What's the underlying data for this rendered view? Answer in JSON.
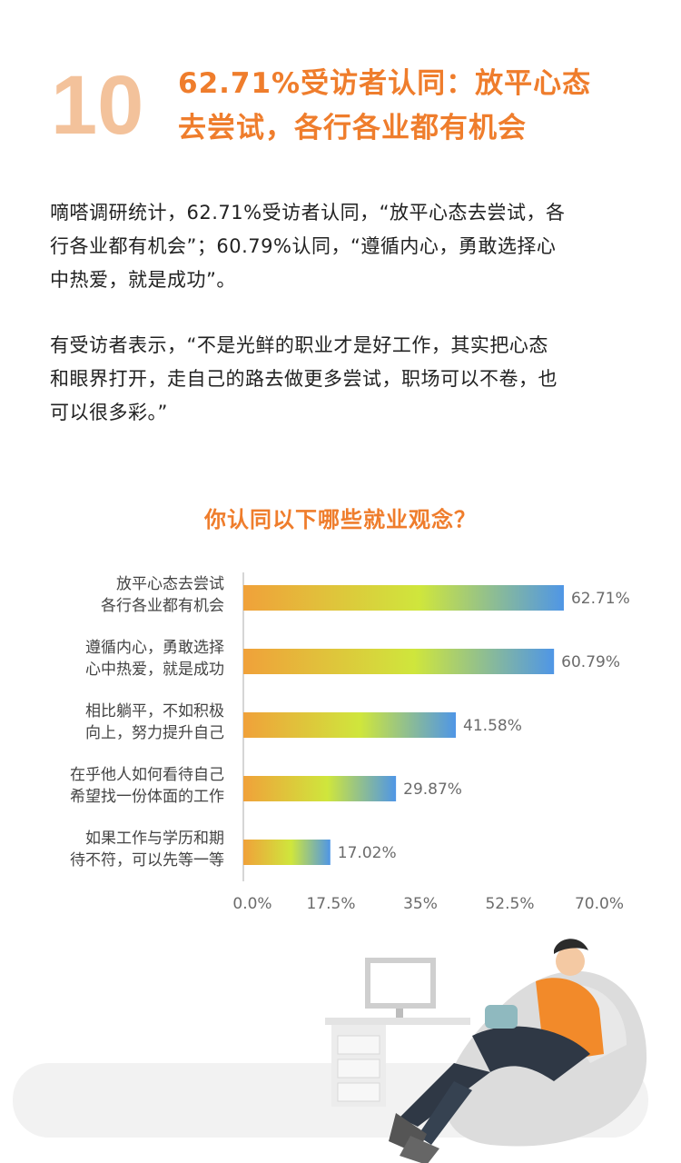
{
  "header": {
    "number": "10",
    "title_line1": "62.71%受访者认同：放平心态",
    "title_line2": "去尝试，各行各业都有机会"
  },
  "paragraphs": {
    "p1": [
      "嘀嗒调研统计，62.71%受访者认同，“放平心态去尝试，各",
      "行各业都有机会”；60.79%认同，“遵循内心，勇敢选择心",
      "中热爱，就是成功”。"
    ],
    "p2": [
      "有受访者表示，“不是光鲜的职业才是好工作，其实把心态",
      "和眼界打开，走自己的路去做更多尝试，职场可以不卷，也",
      "可以很多彩。”"
    ]
  },
  "colors": {
    "accent": "#ef7d2c",
    "number": "#f3c29b",
    "bar_start": "#f0a13a",
    "bar_mid": "#cfe63c",
    "bar_end": "#4f96e6"
  },
  "chart_data": {
    "type": "bar",
    "orientation": "horizontal",
    "title": "你认同以下哪些就业观念？",
    "categories": [
      [
        "放平心态去尝试",
        "各行各业都有机会"
      ],
      [
        "遵循内心，勇敢选择",
        "心中热爱，就是成功"
      ],
      [
        "相比躺平，不如积极",
        "向上，努力提升自己"
      ],
      [
        "在乎他人如何看待自己",
        "希望找一份体面的工作"
      ],
      [
        "如果工作与学历和期",
        "待不符，可以先等一等"
      ]
    ],
    "values": [
      62.71,
      60.79,
      41.58,
      29.87,
      17.02
    ],
    "value_labels": [
      "62.71%",
      "60.79%",
      "41.58%",
      "29.87%",
      "17.02%"
    ],
    "xlim": [
      0,
      70
    ],
    "ticks": [
      "0.0%",
      "17.5%",
      "35%",
      "52.5%",
      "70.0%"
    ],
    "grid": false
  }
}
